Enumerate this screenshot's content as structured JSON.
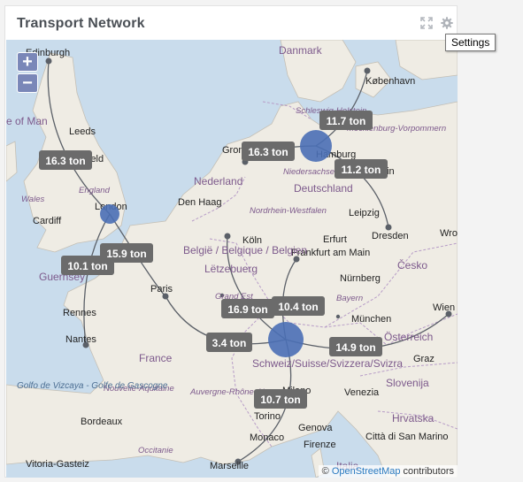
{
  "widget": {
    "title": "Transport Network",
    "tooltip": "Settings"
  },
  "header_icons": [
    "expand-icon",
    "gear-icon"
  ],
  "zoom": {
    "in_label": "+",
    "out_label": "−"
  },
  "attribution": {
    "prefix": "© ",
    "link": "OpenStreetMap",
    "suffix": " contributors"
  },
  "colors": {
    "hub": "#4a6fb5",
    "route": "#5b6068",
    "label_bg": "#6b6b6b",
    "land": "#efece4",
    "water": "#c9dcec"
  },
  "flows": [
    {
      "label": "16.3 ton",
      "from": "London",
      "to": "Edinburgh"
    },
    {
      "label": "16.3 ton",
      "from": "Hamburg",
      "to": "Groningen"
    },
    {
      "label": "11.7 ton",
      "from": "Hamburg",
      "to": "København"
    },
    {
      "label": "11.2 ton",
      "from": "Hamburg",
      "to": "Dresden"
    },
    {
      "label": "10.1 ton",
      "from": "London",
      "to": "Rennes"
    },
    {
      "label": "15.9 ton",
      "from": "London",
      "to": "Paris"
    },
    {
      "label": "16.9 ton",
      "from": "Schweiz",
      "to": "Belgique"
    },
    {
      "label": "10.4 ton",
      "from": "Schweiz",
      "to": "Frankfurt"
    },
    {
      "label": "3.4 ton",
      "from": "Schweiz",
      "to": "Paris"
    },
    {
      "label": "14.9 ton",
      "from": "Schweiz",
      "to": "Wien"
    },
    {
      "label": "10.7 ton",
      "from": "Schweiz",
      "to": "Marseille"
    }
  ],
  "places": {
    "cities": [
      "Edinburgh",
      "Leeds",
      "ield",
      "London",
      "Cardiff",
      "Den Haag",
      "Gron",
      "Hamburg",
      "København",
      "Leipzig",
      "Erfurt",
      "Dresden",
      "Köln",
      "Frankfurt am Main",
      "Nürnberg",
      "München",
      "Wien",
      "Paris",
      "Rennes",
      "Nantes",
      "Bordeaux",
      "Torino",
      "Genova",
      "Firenze",
      "Marseille",
      "Monaco",
      "Venezia",
      "Graz",
      "Milano",
      "Città di San Marino",
      "Vitoria-Gasteiz",
      "Wroc",
      "rlin"
    ],
    "countries": [
      "Danmark",
      "Deutschland",
      "Nederland",
      "België / Belgique / Belgien",
      "Lëtzebuerg",
      "France",
      "Schweiz/Suisse/Svizzera/Svizra",
      "Česko",
      "Österreich",
      "Slovenija",
      "Hrvatska",
      "Italia",
      "England",
      "Wales",
      "Guernsey",
      "e of Man"
    ],
    "regions": [
      "Schleswig-Holstein",
      "Mecklenburg-Vorpommern",
      "Niedersachsen",
      "Nordrhein-Westfalen",
      "Bayern",
      "Grand Est",
      "Nouvelle-Aquitaine",
      "Auvergne-Rhône-Alpes",
      "Occitanie"
    ],
    "seas": [
      "Golfo de Vizcaya - Golfe de Gascogne"
    ]
  }
}
